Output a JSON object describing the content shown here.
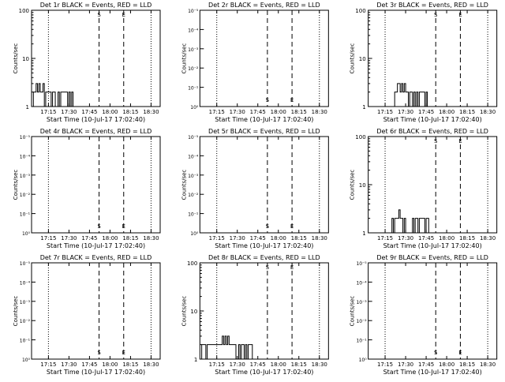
{
  "chart_data": [
    {
      "type": "line",
      "title": "Det 1r BLACK = Events, RED = LLD",
      "ylabel": "Counts/sec",
      "xlabel": "Start Time (10-Jul-17 17:02:40)",
      "yscale": "log",
      "y_tick_labels": [
        "1",
        "10",
        "100"
      ],
      "ylim": [
        1,
        100
      ],
      "x_tick_labels": [
        "17:15",
        "17:30",
        "17:45",
        "18:00",
        "18:15",
        "18:30"
      ],
      "start_marker": "S",
      "end_marker": "E",
      "series": [
        {
          "color": "#000000",
          "x": [
            "17:04:00",
            "17:05:00",
            "17:06:00",
            "17:07:00",
            "17:08:00",
            "17:09:00",
            "17:10:00",
            "17:11:00",
            "17:12:00",
            "17:13:00",
            "17:14:00",
            "17:15:00",
            "17:16:00",
            "17:17:00",
            "17:18:00",
            "17:19:00",
            "17:20:00",
            "17:21:00",
            "17:22:00",
            "17:23:00",
            "17:24:00",
            "17:25:00",
            "17:26:00",
            "17:27:00",
            "17:28:00",
            "17:29:00",
            "17:30:00",
            "17:31:00",
            "17:32:00",
            "17:33:00",
            "17:34:00",
            "17:35:00",
            "17:36:00",
            "17:37:00",
            "17:38:00",
            "17:39:00",
            "17:40:00"
          ],
          "y": [
            2,
            2,
            3,
            2,
            3,
            2,
            2,
            3,
            1,
            2,
            2,
            2,
            2,
            1,
            2,
            2,
            1,
            1,
            2,
            1,
            2,
            2,
            2,
            2,
            2,
            1,
            2,
            1,
            2,
            1,
            1,
            1,
            1,
            1,
            1,
            1,
            1
          ]
        }
      ]
    },
    {
      "type": "line",
      "title": "Det 2r BLACK = Events, RED = LLD",
      "ylabel": "Counts/sec",
      "xlabel": "Start Time (10-Jul-17 17:02:40)",
      "yscale": "log",
      "y_tick_labels": [
        "10⁰",
        "10⁻¹",
        "10⁻²",
        "10⁻³",
        "10⁻⁴",
        "10⁻⁵"
      ],
      "x_tick_labels": [
        "17:15",
        "17:30",
        "17:45",
        "18:00",
        "18:15",
        "18:30"
      ],
      "start_marker": "S",
      "end_marker": "E",
      "series": []
    },
    {
      "type": "line",
      "title": "Det 3r BLACK = Events, RED = LLD",
      "ylabel": "Counts/sec",
      "xlabel": "Start Time (10-Jul-17 17:02:40)",
      "yscale": "log",
      "y_tick_labels": [
        "1",
        "10",
        "100"
      ],
      "ylim": [
        1,
        100
      ],
      "x_tick_labels": [
        "17:15",
        "17:30",
        "17:45",
        "18:00",
        "18:15",
        "18:30"
      ],
      "start_marker": "S",
      "end_marker": "E",
      "series": [
        {
          "color": "#000000",
          "x": [
            "17:21:00",
            "17:22:00",
            "17:23:00",
            "17:24:00",
            "17:25:00",
            "17:26:00",
            "17:27:00",
            "17:28:00",
            "17:29:00",
            "17:30:00",
            "17:31:00",
            "17:32:00",
            "17:33:00",
            "17:34:00",
            "17:35:00",
            "17:36:00",
            "17:37:00",
            "17:38:00",
            "17:39:00",
            "17:40:00",
            "17:41:00",
            "17:42:00",
            "17:43:00",
            "17:44:00",
            "17:45:00"
          ],
          "y": [
            1,
            2,
            2,
            3,
            3,
            2,
            3,
            2,
            3,
            2,
            2,
            1,
            2,
            2,
            1,
            2,
            1,
            2,
            1,
            2,
            2,
            2,
            2,
            1,
            2
          ]
        }
      ]
    },
    {
      "type": "line",
      "title": "Det 4r BLACK = Events, RED = LLD",
      "ylabel": "Counts/sec",
      "xlabel": "Start Time (10-Jul-17 17:02:40)",
      "yscale": "log",
      "y_tick_labels": [
        "10⁰",
        "10⁻¹",
        "10⁻²",
        "10⁻³",
        "10⁻⁴",
        "10⁻⁵"
      ],
      "x_tick_labels": [
        "17:15",
        "17:30",
        "17:45",
        "18:00",
        "18:15",
        "18:30"
      ],
      "start_marker": "S",
      "end_marker": "E",
      "series": []
    },
    {
      "type": "line",
      "title": "Det 5r BLACK = Events, RED = LLD",
      "ylabel": "Counts/sec",
      "xlabel": "Start Time (10-Jul-17 17:02:40)",
      "yscale": "log",
      "y_tick_labels": [
        "10⁰",
        "10⁻¹",
        "10⁻²",
        "10⁻³",
        "10⁻⁴",
        "10⁻⁵"
      ],
      "x_tick_labels": [
        "17:15",
        "17:30",
        "17:45",
        "18:00",
        "18:15",
        "18:30"
      ],
      "start_marker": "S",
      "end_marker": "E",
      "series": []
    },
    {
      "type": "line",
      "title": "Det 6r BLACK = Events, RED = LLD",
      "ylabel": "Counts/sec",
      "xlabel": "Start Time (10-Jul-17 17:02:40)",
      "yscale": "log",
      "y_tick_labels": [
        "1",
        "10",
        "100"
      ],
      "ylim": [
        1,
        100
      ],
      "x_tick_labels": [
        "17:15",
        "17:30",
        "17:45",
        "18:00",
        "18:15",
        "18:30"
      ],
      "start_marker": "S",
      "end_marker": "E",
      "series": [
        {
          "color": "#000000",
          "x": [
            "17:19:00",
            "17:20:00",
            "17:21:00",
            "17:22:00",
            "17:23:00",
            "17:24:00",
            "17:25:00",
            "17:26:00",
            "17:27:00",
            "17:28:00",
            "17:29:00",
            "17:30:00",
            "17:31:00",
            "17:32:00",
            "17:33:00",
            "17:34:00",
            "17:35:00",
            "17:36:00",
            "17:37:00",
            "17:38:00",
            "17:39:00",
            "17:40:00",
            "17:41:00",
            "17:42:00",
            "17:43:00",
            "17:44:00",
            "17:45:00",
            "17:46:00"
          ],
          "y": [
            1,
            2,
            1,
            2,
            2,
            2,
            3,
            2,
            2,
            1,
            2,
            1,
            1,
            1,
            1,
            1,
            2,
            1,
            2,
            2,
            1,
            2,
            2,
            2,
            2,
            1,
            2,
            2
          ]
        }
      ]
    },
    {
      "type": "line",
      "title": "Det 7r BLACK = Events, RED = LLD",
      "ylabel": "Counts/sec",
      "xlabel": "Start Time (10-Jul-17 17:02:40)",
      "yscale": "log",
      "y_tick_labels": [
        "10⁰",
        "10⁻¹",
        "10⁻²",
        "10⁻³",
        "10⁻⁴",
        "10⁻⁵"
      ],
      "x_tick_labels": [
        "17:15",
        "17:30",
        "17:45",
        "18:00",
        "18:15",
        "18:30"
      ],
      "start_marker": "S",
      "end_marker": "E",
      "series": []
    },
    {
      "type": "line",
      "title": "Det 8r BLACK = Events, RED = LLD",
      "ylabel": "Counts/sec",
      "xlabel": "Start Time (10-Jul-17 17:02:40)",
      "yscale": "log",
      "y_tick_labels": [
        "1",
        "10",
        "100"
      ],
      "ylim": [
        1,
        100
      ],
      "x_tick_labels": [
        "17:15",
        "17:30",
        "17:45",
        "18:00",
        "18:15",
        "18:30"
      ],
      "start_marker": "S",
      "end_marker": "E",
      "series": [
        {
          "color": "#000000",
          "x": [
            "17:04:00",
            "17:05:00",
            "17:06:00",
            "17:07:00",
            "17:08:00",
            "17:09:00",
            "17:10:00",
            "17:11:00",
            "17:12:00",
            "17:13:00",
            "17:14:00",
            "17:15:00",
            "17:16:00",
            "17:17:00",
            "17:18:00",
            "17:19:00",
            "17:20:00",
            "17:21:00",
            "17:22:00",
            "17:23:00",
            "17:24:00",
            "17:25:00",
            "17:26:00",
            "17:27:00",
            "17:28:00",
            "17:29:00",
            "17:30:00",
            "17:31:00",
            "17:32:00",
            "17:33:00",
            "17:34:00",
            "17:35:00",
            "17:36:00",
            "17:37:00",
            "17:38:00",
            "17:39:00",
            "17:40:00",
            "17:41:00"
          ],
          "y": [
            2,
            2,
            2,
            1,
            2,
            2,
            2,
            2,
            2,
            2,
            2,
            2,
            2,
            2,
            2,
            3,
            2,
            3,
            2,
            3,
            2,
            2,
            2,
            2,
            2,
            1,
            1,
            2,
            1,
            2,
            2,
            1,
            2,
            1,
            2,
            2,
            2,
            1
          ]
        }
      ]
    },
    {
      "type": "line",
      "title": "Det 9r BLACK = Events, RED = LLD",
      "ylabel": "Counts/sec",
      "xlabel": "Start Time (10-Jul-17 17:02:40)",
      "yscale": "log",
      "y_tick_labels": [
        "10⁰",
        "10⁻¹",
        "10⁻²",
        "10⁻³",
        "10⁻⁴",
        "10⁻⁵"
      ],
      "x_tick_labels": [
        "17:15",
        "17:30",
        "17:45",
        "18:00",
        "18:15",
        "18:30"
      ],
      "start_marker": "S",
      "end_marker": "E",
      "series": []
    }
  ]
}
